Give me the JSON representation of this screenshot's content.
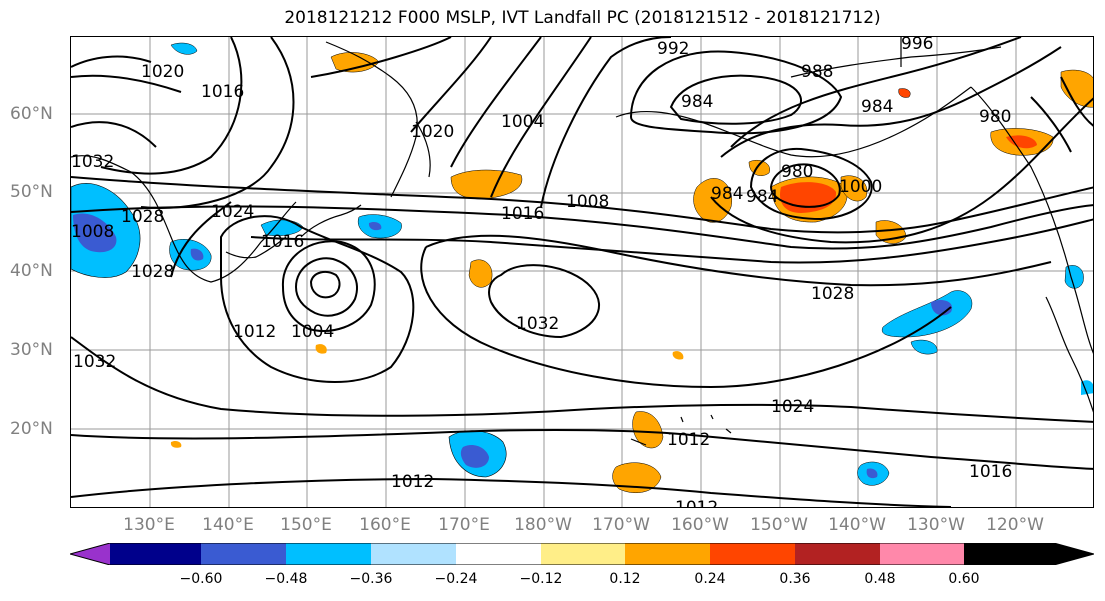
{
  "title": "2018121212 F000 MSLP, IVT Landfall PC (2018121512 - 2018121712)",
  "latitude_labels": [
    "60°N",
    "50°N",
    "40°N",
    "30°N",
    "20°N"
  ],
  "longitude_labels": [
    "130°E",
    "140°E",
    "150°E",
    "160°E",
    "170°E",
    "180°W",
    "170°W",
    "160°W",
    "150°W",
    "140°W",
    "130°W",
    "120°W"
  ],
  "mslp_contour_labels": [
    "992",
    "988",
    "996",
    "984",
    "984",
    "980",
    "1020",
    "1016",
    "1012",
    "1004",
    "984",
    "1032",
    "1028",
    "1024",
    "1016",
    "1008",
    "980",
    "984",
    "1000",
    "1032",
    "1028",
    "1016",
    "1008",
    "1004",
    "1012",
    "1028",
    "1032",
    "1024",
    "1020",
    "1012",
    "1016",
    "1012"
  ],
  "colorbar": {
    "ticks": [
      "−0.60",
      "−0.48",
      "−0.36",
      "−0.24",
      "−0.12",
      "0.12",
      "0.24",
      "0.36",
      "0.48",
      "0.60"
    ],
    "colors": [
      "#9932cc",
      "#00008b",
      "#3a5bd2",
      "#00bfff",
      "#b0e2ff",
      "#ffffff",
      "#ffee88",
      "#ffa500",
      "#ff4500",
      "#b22222",
      "#ff88aa"
    ]
  }
}
